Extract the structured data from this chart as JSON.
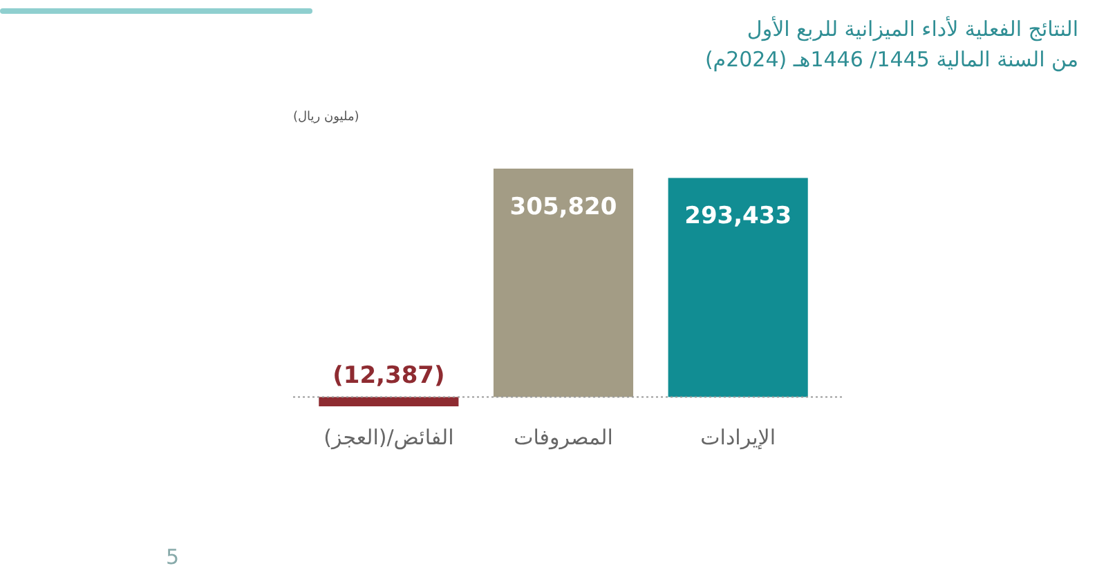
{
  "chart_data": {
    "type": "bar",
    "title": "النتائج الفعلية لأداء الميزانية للربع الأول",
    "subtitle": "من السنة المالية 1445/ 1446هـ (2024م)",
    "ylabel": "(مليون ريال)",
    "categories": [
      "الفائض/(العجز)",
      "المصروفات",
      "الإيرادات"
    ],
    "values": [
      -12387,
      305820,
      293433
    ],
    "colors": [
      "#8e2b31",
      "#a39c85",
      "#118d93"
    ],
    "value_labels": [
      "(12,387)",
      "305,820",
      "293,433"
    ],
    "tick_labels": "x",
    "ref_lines": [
      {
        "axis": "y",
        "value": 0,
        "color": "#999999",
        "line_style": "dotted"
      }
    ],
    "annotations": [
      "5"
    ]
  }
}
